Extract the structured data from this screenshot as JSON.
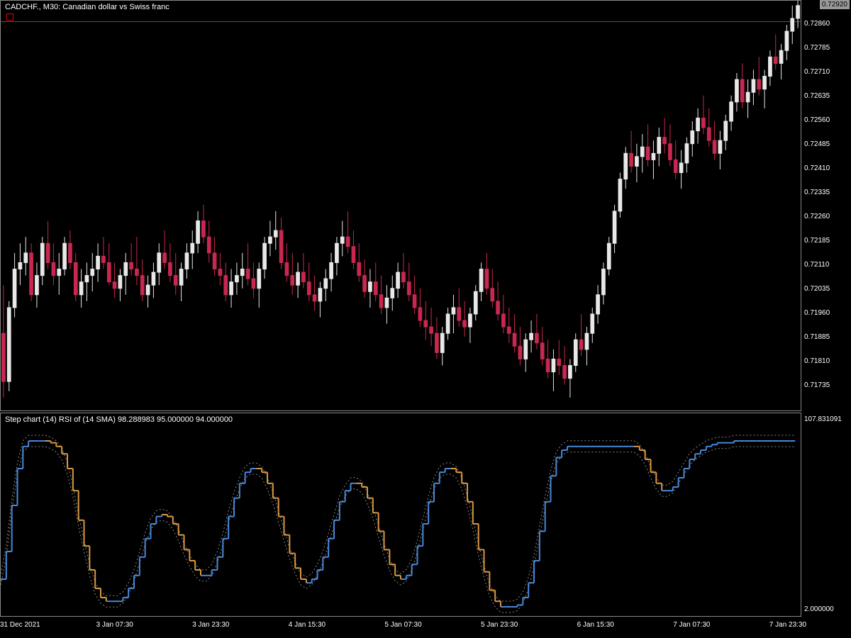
{
  "main": {
    "title": "CADCHF., M30:  Canadian dollar vs Swiss franc",
    "type": "candlestick",
    "background": "#000000",
    "border_color": "#888888",
    "text_color": "#ffffff",
    "bull_color": "#e8e8e8",
    "bear_color": "#c82850",
    "wick_color": "#000000",
    "green_color": "#00a800",
    "y_min": 0.7166,
    "y_max": 0.72935,
    "y_ticks": [
      0.71735,
      0.7181,
      0.71885,
      0.7196,
      0.72035,
      0.7211,
      0.72185,
      0.7226,
      0.72335,
      0.7241,
      0.72485,
      0.7256,
      0.72635,
      0.7271,
      0.72785,
      0.7286
    ],
    "y_tick_labels": [
      "0.71735",
      "0.71810",
      "0.71885",
      "0.71960",
      "0.72035",
      "0.72110",
      "0.72185",
      "0.72260",
      "0.72335",
      "0.72410",
      "0.72485",
      "0.72560",
      "0.72635",
      "0.72710",
      "0.72785",
      "0.72860"
    ],
    "current_price": 0.7292,
    "current_price_label": "0.72920",
    "top_line_price": 0.7287,
    "top_line_color": "#555555",
    "candles": [
      {
        "o": 0.719,
        "h": 0.7205,
        "l": 0.717,
        "c": 0.7175
      },
      {
        "o": 0.7175,
        "h": 0.72,
        "l": 0.7172,
        "c": 0.7198
      },
      {
        "o": 0.7198,
        "h": 0.7215,
        "l": 0.7195,
        "c": 0.721
      },
      {
        "o": 0.721,
        "h": 0.7218,
        "l": 0.7205,
        "c": 0.7212
      },
      {
        "o": 0.7212,
        "h": 0.722,
        "l": 0.7208,
        "c": 0.7215
      },
      {
        "o": 0.7215,
        "h": 0.7218,
        "l": 0.72,
        "c": 0.7202
      },
      {
        "o": 0.7202,
        "h": 0.7212,
        "l": 0.7198,
        "c": 0.7208
      },
      {
        "o": 0.7208,
        "h": 0.722,
        "l": 0.7205,
        "c": 0.7218
      },
      {
        "o": 0.7218,
        "h": 0.7225,
        "l": 0.721,
        "c": 0.7212
      },
      {
        "o": 0.7212,
        "h": 0.7218,
        "l": 0.7205,
        "c": 0.7208
      },
      {
        "o": 0.7208,
        "h": 0.7215,
        "l": 0.7202,
        "c": 0.721
      },
      {
        "o": 0.721,
        "h": 0.722,
        "l": 0.7208,
        "c": 0.7218
      },
      {
        "o": 0.7218,
        "h": 0.7222,
        "l": 0.721,
        "c": 0.7212
      },
      {
        "o": 0.7212,
        "h": 0.7215,
        "l": 0.72,
        "c": 0.7202
      },
      {
        "o": 0.7202,
        "h": 0.721,
        "l": 0.7198,
        "c": 0.7206
      },
      {
        "o": 0.7206,
        "h": 0.7212,
        "l": 0.72,
        "c": 0.7208
      },
      {
        "o": 0.7208,
        "h": 0.7215,
        "l": 0.7203,
        "c": 0.721
      },
      {
        "o": 0.721,
        "h": 0.7218,
        "l": 0.7206,
        "c": 0.7214
      },
      {
        "o": 0.7214,
        "h": 0.722,
        "l": 0.721,
        "c": 0.7212
      },
      {
        "o": 0.7212,
        "h": 0.7218,
        "l": 0.7205,
        "c": 0.7206
      },
      {
        "o": 0.7206,
        "h": 0.7212,
        "l": 0.7201,
        "c": 0.7204
      },
      {
        "o": 0.7204,
        "h": 0.721,
        "l": 0.72,
        "c": 0.7208
      },
      {
        "o": 0.7208,
        "h": 0.7215,
        "l": 0.7202,
        "c": 0.7212
      },
      {
        "o": 0.7212,
        "h": 0.7218,
        "l": 0.7208,
        "c": 0.721
      },
      {
        "o": 0.721,
        "h": 0.722,
        "l": 0.7205,
        "c": 0.7208
      },
      {
        "o": 0.7208,
        "h": 0.7213,
        "l": 0.72,
        "c": 0.7202
      },
      {
        "o": 0.7202,
        "h": 0.7208,
        "l": 0.7198,
        "c": 0.7205
      },
      {
        "o": 0.7205,
        "h": 0.7212,
        "l": 0.7201,
        "c": 0.7209
      },
      {
        "o": 0.7209,
        "h": 0.7218,
        "l": 0.7205,
        "c": 0.7215
      },
      {
        "o": 0.7215,
        "h": 0.7222,
        "l": 0.721,
        "c": 0.7212
      },
      {
        "o": 0.7212,
        "h": 0.7218,
        "l": 0.7206,
        "c": 0.7208
      },
      {
        "o": 0.7208,
        "h": 0.7215,
        "l": 0.7202,
        "c": 0.7205
      },
      {
        "o": 0.7205,
        "h": 0.7212,
        "l": 0.72,
        "c": 0.721
      },
      {
        "o": 0.721,
        "h": 0.7218,
        "l": 0.7207,
        "c": 0.7215
      },
      {
        "o": 0.7215,
        "h": 0.7222,
        "l": 0.721,
        "c": 0.7218
      },
      {
        "o": 0.7218,
        "h": 0.7228,
        "l": 0.7215,
        "c": 0.7225
      },
      {
        "o": 0.7225,
        "h": 0.723,
        "l": 0.7218,
        "c": 0.722
      },
      {
        "o": 0.722,
        "h": 0.7225,
        "l": 0.7212,
        "c": 0.7215
      },
      {
        "o": 0.7215,
        "h": 0.722,
        "l": 0.7208,
        "c": 0.721
      },
      {
        "o": 0.721,
        "h": 0.7215,
        "l": 0.7205,
        "c": 0.7208
      },
      {
        "o": 0.7208,
        "h": 0.7212,
        "l": 0.72,
        "c": 0.7202
      },
      {
        "o": 0.7202,
        "h": 0.721,
        "l": 0.7198,
        "c": 0.7206
      },
      {
        "o": 0.7206,
        "h": 0.7212,
        "l": 0.7202,
        "c": 0.7208
      },
      {
        "o": 0.7208,
        "h": 0.7215,
        "l": 0.7204,
        "c": 0.721
      },
      {
        "o": 0.721,
        "h": 0.7218,
        "l": 0.7205,
        "c": 0.7207
      },
      {
        "o": 0.7207,
        "h": 0.7212,
        "l": 0.7201,
        "c": 0.7204
      },
      {
        "o": 0.7204,
        "h": 0.7212,
        "l": 0.7198,
        "c": 0.721
      },
      {
        "o": 0.721,
        "h": 0.722,
        "l": 0.7207,
        "c": 0.7218
      },
      {
        "o": 0.7218,
        "h": 0.7225,
        "l": 0.7214,
        "c": 0.722
      },
      {
        "o": 0.722,
        "h": 0.7228,
        "l": 0.7216,
        "c": 0.7222
      },
      {
        "o": 0.7222,
        "h": 0.7226,
        "l": 0.721,
        "c": 0.7212
      },
      {
        "o": 0.7212,
        "h": 0.7218,
        "l": 0.7206,
        "c": 0.7208
      },
      {
        "o": 0.7208,
        "h": 0.7215,
        "l": 0.7202,
        "c": 0.7205
      },
      {
        "o": 0.7205,
        "h": 0.7212,
        "l": 0.7201,
        "c": 0.7209
      },
      {
        "o": 0.7209,
        "h": 0.7215,
        "l": 0.7204,
        "c": 0.7206
      },
      {
        "o": 0.7206,
        "h": 0.7212,
        "l": 0.72,
        "c": 0.7202
      },
      {
        "o": 0.7202,
        "h": 0.7208,
        "l": 0.7197,
        "c": 0.72
      },
      {
        "o": 0.72,
        "h": 0.7206,
        "l": 0.7195,
        "c": 0.7204
      },
      {
        "o": 0.7204,
        "h": 0.721,
        "l": 0.72,
        "c": 0.7207
      },
      {
        "o": 0.7207,
        "h": 0.7215,
        "l": 0.7203,
        "c": 0.7212
      },
      {
        "o": 0.7212,
        "h": 0.722,
        "l": 0.7208,
        "c": 0.7218
      },
      {
        "o": 0.7218,
        "h": 0.7225,
        "l": 0.7214,
        "c": 0.722
      },
      {
        "o": 0.722,
        "h": 0.7228,
        "l": 0.7215,
        "c": 0.7217
      },
      {
        "o": 0.7217,
        "h": 0.7222,
        "l": 0.721,
        "c": 0.7212
      },
      {
        "o": 0.7212,
        "h": 0.7218,
        "l": 0.7206,
        "c": 0.7208
      },
      {
        "o": 0.7208,
        "h": 0.7213,
        "l": 0.7201,
        "c": 0.7203
      },
      {
        "o": 0.7203,
        "h": 0.721,
        "l": 0.7198,
        "c": 0.7206
      },
      {
        "o": 0.7206,
        "h": 0.7212,
        "l": 0.72,
        "c": 0.7202
      },
      {
        "o": 0.7202,
        "h": 0.7208,
        "l": 0.7196,
        "c": 0.7198
      },
      {
        "o": 0.7198,
        "h": 0.7205,
        "l": 0.7193,
        "c": 0.7201
      },
      {
        "o": 0.7201,
        "h": 0.7208,
        "l": 0.7197,
        "c": 0.7204
      },
      {
        "o": 0.7204,
        "h": 0.7212,
        "l": 0.7201,
        "c": 0.7209
      },
      {
        "o": 0.7209,
        "h": 0.7215,
        "l": 0.7204,
        "c": 0.7206
      },
      {
        "o": 0.7206,
        "h": 0.7212,
        "l": 0.72,
        "c": 0.7202
      },
      {
        "o": 0.7202,
        "h": 0.7208,
        "l": 0.7196,
        "c": 0.7198
      },
      {
        "o": 0.7198,
        "h": 0.7204,
        "l": 0.7192,
        "c": 0.7194
      },
      {
        "o": 0.7194,
        "h": 0.72,
        "l": 0.7188,
        "c": 0.7192
      },
      {
        "o": 0.7192,
        "h": 0.7198,
        "l": 0.7186,
        "c": 0.719
      },
      {
        "o": 0.719,
        "h": 0.7195,
        "l": 0.7182,
        "c": 0.7184
      },
      {
        "o": 0.7184,
        "h": 0.7192,
        "l": 0.718,
        "c": 0.719
      },
      {
        "o": 0.719,
        "h": 0.7198,
        "l": 0.7188,
        "c": 0.7196
      },
      {
        "o": 0.7196,
        "h": 0.7202,
        "l": 0.719,
        "c": 0.7198
      },
      {
        "o": 0.7198,
        "h": 0.7204,
        "l": 0.7192,
        "c": 0.7194
      },
      {
        "o": 0.7194,
        "h": 0.72,
        "l": 0.7189,
        "c": 0.7192
      },
      {
        "o": 0.7192,
        "h": 0.7198,
        "l": 0.7187,
        "c": 0.7196
      },
      {
        "o": 0.7196,
        "h": 0.7205,
        "l": 0.7194,
        "c": 0.7203
      },
      {
        "o": 0.7203,
        "h": 0.7212,
        "l": 0.72,
        "c": 0.721
      },
      {
        "o": 0.721,
        "h": 0.7215,
        "l": 0.7202,
        "c": 0.7204
      },
      {
        "o": 0.7204,
        "h": 0.721,
        "l": 0.7198,
        "c": 0.72
      },
      {
        "o": 0.72,
        "h": 0.7206,
        "l": 0.7194,
        "c": 0.7196
      },
      {
        "o": 0.7196,
        "h": 0.7202,
        "l": 0.719,
        "c": 0.7192
      },
      {
        "o": 0.7192,
        "h": 0.7198,
        "l": 0.7187,
        "c": 0.719
      },
      {
        "o": 0.719,
        "h": 0.7196,
        "l": 0.7184,
        "c": 0.7186
      },
      {
        "o": 0.7186,
        "h": 0.7192,
        "l": 0.718,
        "c": 0.7182
      },
      {
        "o": 0.7182,
        "h": 0.719,
        "l": 0.7178,
        "c": 0.7188
      },
      {
        "o": 0.7188,
        "h": 0.7194,
        "l": 0.7184,
        "c": 0.719
      },
      {
        "o": 0.719,
        "h": 0.7196,
        "l": 0.7185,
        "c": 0.7187
      },
      {
        "o": 0.7187,
        "h": 0.7192,
        "l": 0.718,
        "c": 0.7182
      },
      {
        "o": 0.7182,
        "h": 0.7188,
        "l": 0.7176,
        "c": 0.7178
      },
      {
        "o": 0.7178,
        "h": 0.7185,
        "l": 0.7172,
        "c": 0.7182
      },
      {
        "o": 0.7182,
        "h": 0.7188,
        "l": 0.7177,
        "c": 0.718
      },
      {
        "o": 0.718,
        "h": 0.7186,
        "l": 0.7174,
        "c": 0.7176
      },
      {
        "o": 0.7176,
        "h": 0.7182,
        "l": 0.717,
        "c": 0.718
      },
      {
        "o": 0.718,
        "h": 0.719,
        "l": 0.7178,
        "c": 0.7188
      },
      {
        "o": 0.7188,
        "h": 0.7196,
        "l": 0.7183,
        "c": 0.7185
      },
      {
        "o": 0.7185,
        "h": 0.7192,
        "l": 0.718,
        "c": 0.719
      },
      {
        "o": 0.719,
        "h": 0.7198,
        "l": 0.7187,
        "c": 0.7196
      },
      {
        "o": 0.7196,
        "h": 0.7205,
        "l": 0.7193,
        "c": 0.7202
      },
      {
        "o": 0.7202,
        "h": 0.7212,
        "l": 0.7199,
        "c": 0.721
      },
      {
        "o": 0.721,
        "h": 0.722,
        "l": 0.7208,
        "c": 0.7218
      },
      {
        "o": 0.7218,
        "h": 0.723,
        "l": 0.7215,
        "c": 0.7228
      },
      {
        "o": 0.7228,
        "h": 0.724,
        "l": 0.7226,
        "c": 0.7238
      },
      {
        "o": 0.7238,
        "h": 0.7248,
        "l": 0.7235,
        "c": 0.7246
      },
      {
        "o": 0.7246,
        "h": 0.7253,
        "l": 0.724,
        "c": 0.7242
      },
      {
        "o": 0.7242,
        "h": 0.7249,
        "l": 0.7237,
        "c": 0.7245
      },
      {
        "o": 0.7245,
        "h": 0.7252,
        "l": 0.724,
        "c": 0.7248
      },
      {
        "o": 0.7248,
        "h": 0.7255,
        "l": 0.7242,
        "c": 0.7244
      },
      {
        "o": 0.7244,
        "h": 0.725,
        "l": 0.7238,
        "c": 0.7246
      },
      {
        "o": 0.7246,
        "h": 0.7254,
        "l": 0.7242,
        "c": 0.7251
      },
      {
        "o": 0.7251,
        "h": 0.7257,
        "l": 0.7246,
        "c": 0.7249
      },
      {
        "o": 0.7249,
        "h": 0.7255,
        "l": 0.7242,
        "c": 0.7244
      },
      {
        "o": 0.7244,
        "h": 0.725,
        "l": 0.7238,
        "c": 0.724
      },
      {
        "o": 0.724,
        "h": 0.7247,
        "l": 0.7235,
        "c": 0.7243
      },
      {
        "o": 0.7243,
        "h": 0.7251,
        "l": 0.724,
        "c": 0.7249
      },
      {
        "o": 0.7249,
        "h": 0.7256,
        "l": 0.7245,
        "c": 0.7253
      },
      {
        "o": 0.7253,
        "h": 0.726,
        "l": 0.7249,
        "c": 0.7257
      },
      {
        "o": 0.7257,
        "h": 0.7264,
        "l": 0.7252,
        "c": 0.7254
      },
      {
        "o": 0.7254,
        "h": 0.726,
        "l": 0.7248,
        "c": 0.725
      },
      {
        "o": 0.725,
        "h": 0.7256,
        "l": 0.7244,
        "c": 0.7246
      },
      {
        "o": 0.7246,
        "h": 0.7253,
        "l": 0.7241,
        "c": 0.725
      },
      {
        "o": 0.725,
        "h": 0.7258,
        "l": 0.7247,
        "c": 0.7256
      },
      {
        "o": 0.7256,
        "h": 0.7264,
        "l": 0.7253,
        "c": 0.7262
      },
      {
        "o": 0.7262,
        "h": 0.7271,
        "l": 0.7259,
        "c": 0.7269
      },
      {
        "o": 0.7269,
        "h": 0.7274,
        "l": 0.726,
        "c": 0.7262
      },
      {
        "o": 0.7262,
        "h": 0.7269,
        "l": 0.7257,
        "c": 0.7265
      },
      {
        "o": 0.7265,
        "h": 0.7272,
        "l": 0.7261,
        "c": 0.7269
      },
      {
        "o": 0.7269,
        "h": 0.7276,
        "l": 0.7264,
        "c": 0.7266
      },
      {
        "o": 0.7266,
        "h": 0.7272,
        "l": 0.726,
        "c": 0.727
      },
      {
        "o": 0.727,
        "h": 0.7278,
        "l": 0.7267,
        "c": 0.7276
      },
      {
        "o": 0.7276,
        "h": 0.7283,
        "l": 0.7272,
        "c": 0.7274
      },
      {
        "o": 0.7274,
        "h": 0.728,
        "l": 0.7269,
        "c": 0.7278
      },
      {
        "o": 0.7278,
        "h": 0.7286,
        "l": 0.7275,
        "c": 0.7284
      },
      {
        "o": 0.7284,
        "h": 0.7292,
        "l": 0.728,
        "c": 0.7288
      },
      {
        "o": 0.7288,
        "h": 0.72935,
        "l": 0.7285,
        "c": 0.7292
      }
    ]
  },
  "indicator": {
    "title": "Step chart (14) RSI of (14 SMA) 98.288983 95.000000 94.000000",
    "type": "step-line",
    "y_min": 0,
    "y_max": 110,
    "top_label": "107.831091",
    "bottom_label": "2.000000",
    "up_color": "#4888d8",
    "down_color": "#d89840",
    "channel_color": "#888888",
    "channel_width": 8,
    "values": [
      20,
      35,
      60,
      80,
      92,
      95,
      95,
      95,
      95,
      94,
      92,
      88,
      80,
      68,
      52,
      38,
      25,
      15,
      10,
      8,
      8,
      8,
      10,
      15,
      22,
      32,
      42,
      50,
      54,
      55,
      54,
      50,
      44,
      36,
      30,
      25,
      22,
      22,
      25,
      32,
      42,
      54,
      64,
      72,
      78,
      80,
      80,
      78,
      72,
      64,
      54,
      44,
      34,
      26,
      20,
      18,
      20,
      25,
      32,
      42,
      52,
      62,
      68,
      72,
      72,
      70,
      64,
      56,
      46,
      36,
      28,
      22,
      20,
      22,
      28,
      38,
      50,
      62,
      72,
      78,
      80,
      80,
      78,
      72,
      62,
      50,
      36,
      24,
      14,
      8,
      5,
      5,
      5,
      6,
      10,
      18,
      30,
      46,
      62,
      76,
      86,
      90,
      92,
      92,
      92,
      92,
      92,
      92,
      92,
      92,
      92,
      92,
      92,
      92,
      92,
      90,
      85,
      78,
      72,
      68,
      68,
      70,
      75,
      80,
      85,
      88,
      90,
      92,
      93,
      94,
      94,
      94,
      95,
      95,
      95,
      95,
      95,
      95,
      95,
      95,
      95,
      95,
      95,
      95
    ]
  },
  "x_axis": {
    "labels": [
      "31 Dec 2021",
      "3 Jan 07:30",
      "3 Jan 23:30",
      "4 Jan 15:30",
      "5 Jan 07:30",
      "5 Jan 23:30",
      "6 Jan 15:30",
      "7 Jan 07:30",
      "7 Jan 23:30"
    ],
    "positions": [
      0,
      0.12,
      0.24,
      0.36,
      0.48,
      0.6,
      0.72,
      0.84,
      0.96
    ]
  }
}
